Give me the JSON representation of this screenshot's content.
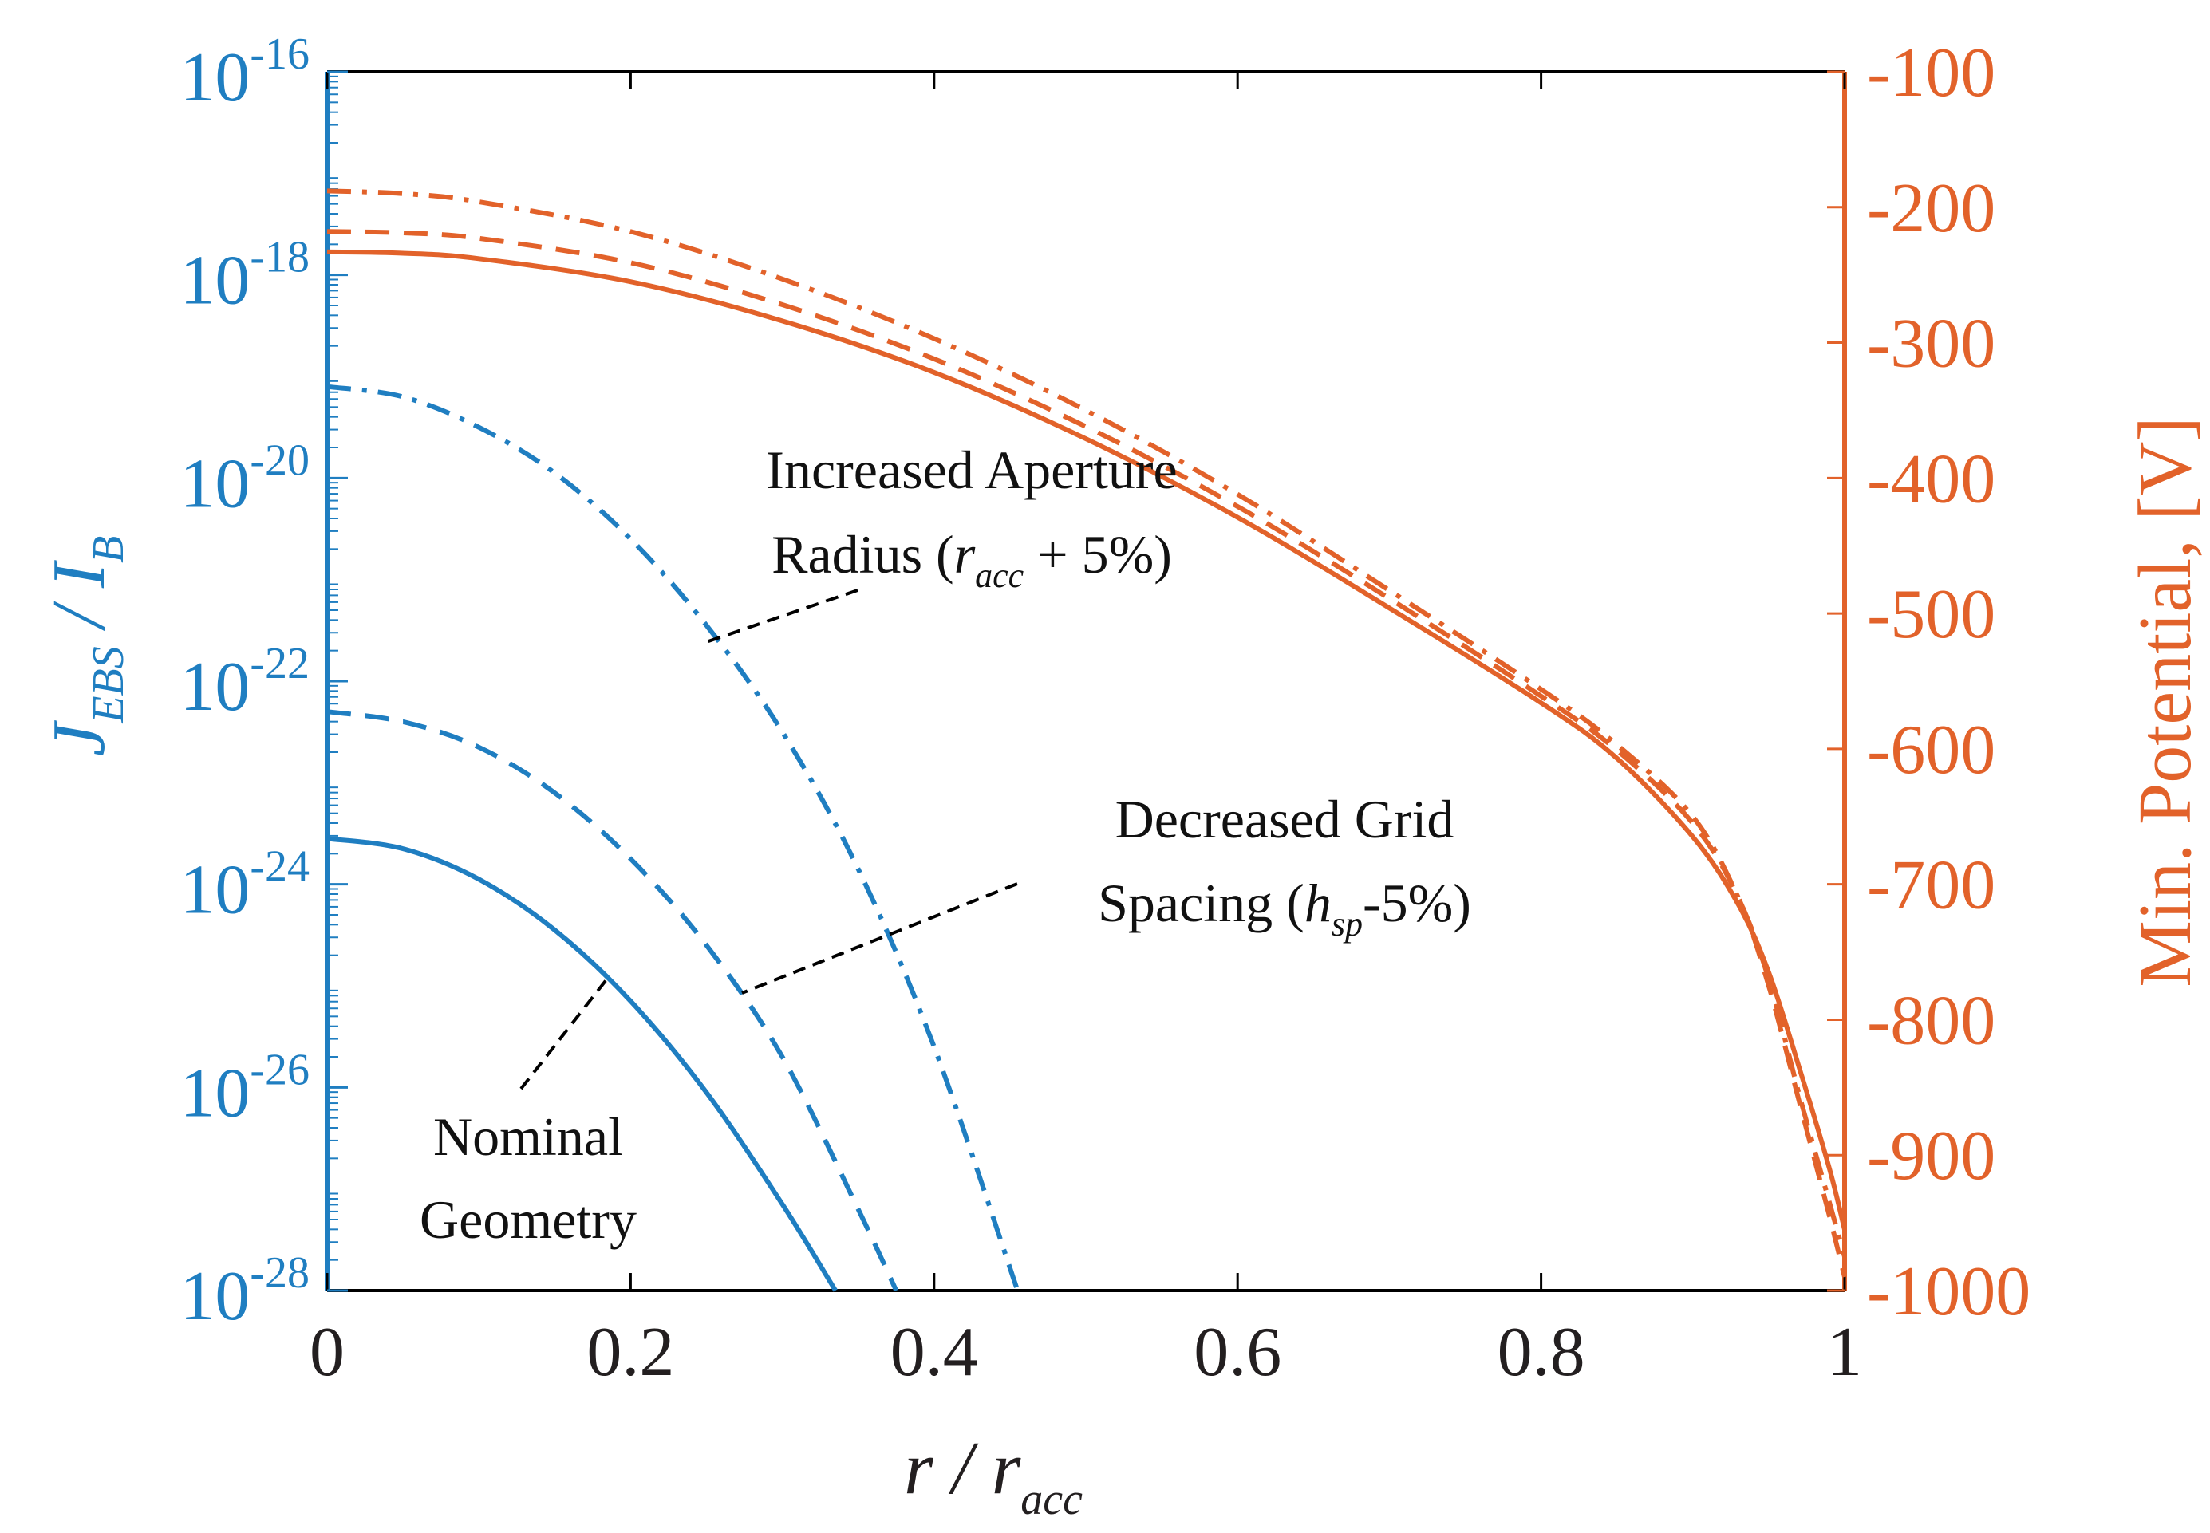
{
  "chart_data": {
    "type": "line",
    "x": {
      "label": "r / r_acc",
      "range": [
        0,
        1
      ],
      "ticks": [
        "0",
        "0.2",
        "0.4",
        "0.6",
        "0.8",
        "1"
      ]
    },
    "y_left": {
      "label": "J_EBS / I_B",
      "scale": "log",
      "range": [
        1e-28,
        1e-16
      ],
      "ticks": [
        {
          "base": "10",
          "exp": "-16"
        },
        {
          "base": "10",
          "exp": "-18"
        },
        {
          "base": "10",
          "exp": "-20"
        },
        {
          "base": "10",
          "exp": "-22"
        },
        {
          "base": "10",
          "exp": "-24"
        },
        {
          "base": "10",
          "exp": "-26"
        },
        {
          "base": "10",
          "exp": "-28"
        }
      ],
      "color": "#1f7ec1"
    },
    "y_right": {
      "label": "Min. Potential, [V]",
      "scale": "linear",
      "range": [
        -1000,
        -100
      ],
      "ticks": [
        "-100",
        "-200",
        "-300",
        "-400",
        "-500",
        "-600",
        "-700",
        "-800",
        "-900",
        "-1000"
      ],
      "color": "#e2622a"
    },
    "series": [
      {
        "axis": "left",
        "style": "solid",
        "color": "#1f7ec1",
        "x": [
          0,
          0.05,
          0.1,
          0.15,
          0.2,
          0.25,
          0.3,
          0.335
        ],
        "y_log10": [
          -23.55,
          -23.65,
          -23.95,
          -24.45,
          -25.15,
          -26.05,
          -27.15,
          -28.0
        ]
      },
      {
        "axis": "left",
        "style": "dashed",
        "color": "#1f7ec1",
        "x": [
          0,
          0.05,
          0.1,
          0.15,
          0.2,
          0.25,
          0.3,
          0.35,
          0.375
        ],
        "y_log10": [
          -22.3,
          -22.4,
          -22.65,
          -23.1,
          -23.75,
          -24.6,
          -25.7,
          -27.2,
          -28.0
        ]
      },
      {
        "axis": "left",
        "style": "dash-dot",
        "color": "#1f7ec1",
        "x": [
          0,
          0.05,
          0.1,
          0.15,
          0.2,
          0.25,
          0.3,
          0.35,
          0.4,
          0.455
        ],
        "y_log10": [
          -19.1,
          -19.2,
          -19.5,
          -19.95,
          -20.6,
          -21.45,
          -22.5,
          -23.85,
          -25.6,
          -28.0
        ]
      },
      {
        "axis": "right",
        "style": "solid",
        "color": "#e2622a",
        "x": [
          0,
          0.05,
          0.1,
          0.2,
          0.3,
          0.4,
          0.5,
          0.6,
          0.7,
          0.8,
          0.85,
          0.9,
          0.93,
          0.95,
          0.97,
          0.99,
          1.0
        ],
        "y": [
          -233,
          -234,
          -238,
          -255,
          -284,
          -322,
          -371,
          -429,
          -496,
          -566,
          -607,
          -665,
          -715,
          -765,
          -835,
          -910,
          -955
        ]
      },
      {
        "axis": "right",
        "style": "dashed",
        "color": "#e2622a",
        "x": [
          0,
          0.05,
          0.1,
          0.2,
          0.3,
          0.4,
          0.5,
          0.6,
          0.7,
          0.8,
          0.85,
          0.9,
          0.93,
          0.95,
          0.97,
          0.99,
          1.0
        ],
        "y": [
          -218,
          -219,
          -223,
          -241,
          -272,
          -312,
          -362,
          -421,
          -489,
          -561,
          -601,
          -655,
          -710,
          -775,
          -860,
          -945,
          -990
        ]
      },
      {
        "axis": "right",
        "style": "dash-dot",
        "color": "#e2622a",
        "x": [
          0,
          0.05,
          0.1,
          0.2,
          0.3,
          0.4,
          0.5,
          0.6,
          0.7,
          0.8,
          0.85,
          0.9,
          0.93,
          0.95,
          0.97,
          0.99,
          1.0
        ],
        "y": [
          -188,
          -190,
          -196,
          -218,
          -253,
          -297,
          -350,
          -412,
          -483,
          -556,
          -597,
          -650,
          -710,
          -770,
          -855,
          -935,
          -975
        ]
      }
    ],
    "annotations": [
      {
        "id": "aperture",
        "lines": [
          "Increased Aperture",
          "Radius (",
          "r",
          "acc",
          " + 5%)"
        ]
      },
      {
        "id": "spacing",
        "lines": [
          "Decreased Grid",
          "Spacing (",
          "h",
          "sp",
          "-5%)"
        ]
      },
      {
        "id": "nominal",
        "lines": [
          "Nominal",
          "Geometry"
        ]
      }
    ],
    "grid": false
  },
  "labels": {
    "x_title_main": "r / r",
    "x_title_sub": "acc",
    "yl_J": "J",
    "yl_sub1": "EBS",
    "yl_mid": " / I",
    "yl_sub2": "B",
    "yr_title": "Min. Potential, [V]",
    "ann1_l1": "Increased Aperture",
    "ann1_l2a": "Radius (",
    "ann1_l2b": "r",
    "ann1_l2c": "acc",
    "ann1_l2d": " + 5%)",
    "ann2_l1": "Decreased Grid",
    "ann2_l2a": "Spacing (",
    "ann2_l2b": "h",
    "ann2_l2c": "sp",
    "ann2_l2d": "-5%)",
    "ann3_l1": "Nominal",
    "ann3_l2": "Geometry"
  }
}
